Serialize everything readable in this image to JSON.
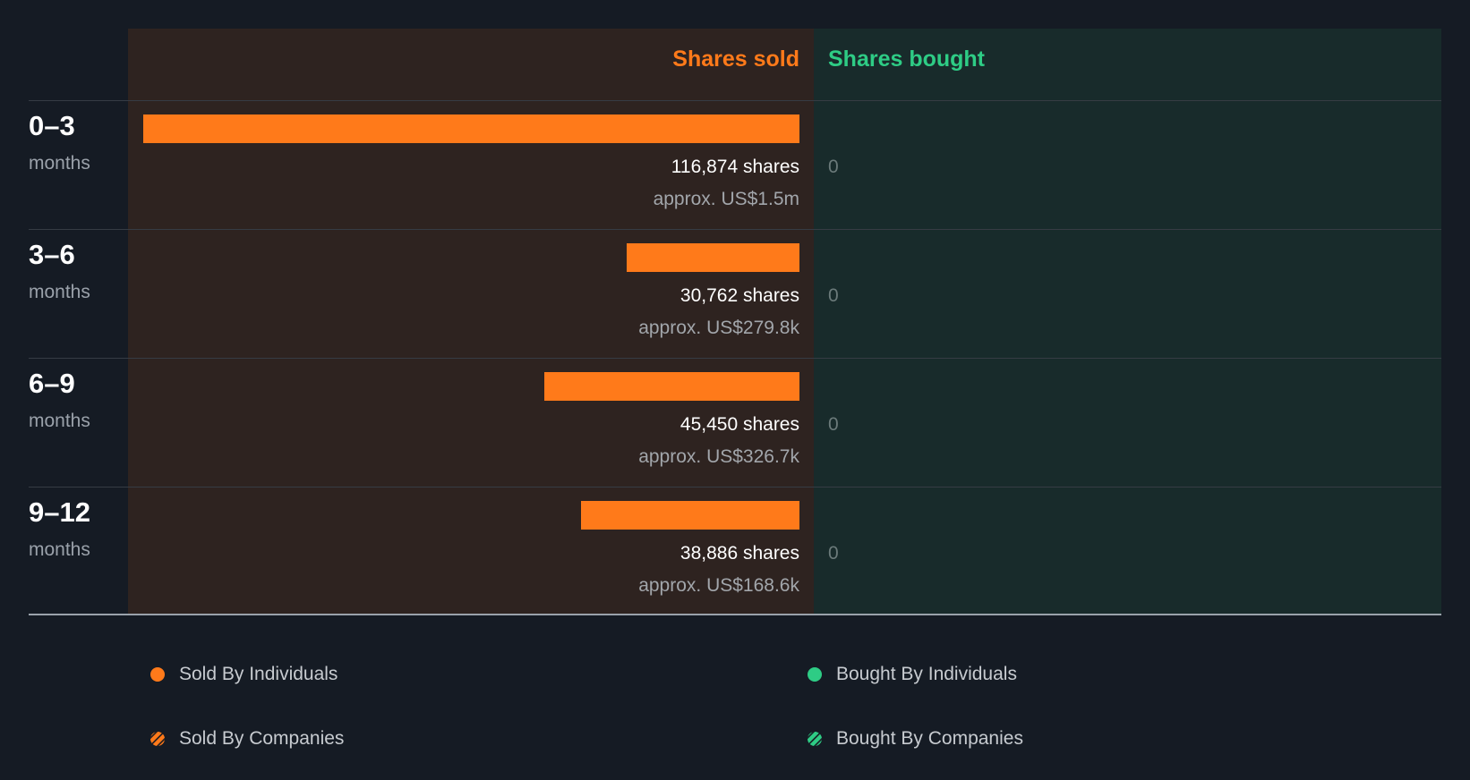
{
  "chart_data": {
    "type": "bar",
    "title": "",
    "column_headers": {
      "sold": "Shares sold",
      "bought": "Shares bought"
    },
    "categories": [
      "0–3",
      "3–6",
      "6–9",
      "9–12"
    ],
    "category_unit": "months",
    "series": [
      {
        "name": "Shares sold",
        "values": [
          116874,
          30762,
          45450,
          38886
        ]
      },
      {
        "name": "Shares bought",
        "values": [
          0,
          0,
          0,
          0
        ]
      }
    ],
    "rows": [
      {
        "period": "0–3",
        "unit": "months",
        "sold_shares": 116874,
        "sold_label": "116,874 shares",
        "sold_value": "approx. US$1.5m",
        "bought_label": "0"
      },
      {
        "period": "3–6",
        "unit": "months",
        "sold_shares": 30762,
        "sold_label": "30,762 shares",
        "sold_value": "approx. US$279.8k",
        "bought_label": "0"
      },
      {
        "period": "6–9",
        "unit": "months",
        "sold_shares": 45450,
        "sold_label": "45,450 shares",
        "sold_value": "approx. US$326.7k",
        "bought_label": "0"
      },
      {
        "period": "9–12",
        "unit": "months",
        "sold_shares": 38886,
        "sold_label": "38,886 shares",
        "sold_value": "approx. US$168.6k",
        "bought_label": "0"
      }
    ],
    "legend": [
      {
        "label": "Sold By Individuals"
      },
      {
        "label": "Bought By Individuals"
      },
      {
        "label": "Sold By Companies"
      },
      {
        "label": "Bought By Companies"
      }
    ],
    "colors": {
      "sold": "#ff7a1a",
      "bought": "#2ecc85"
    }
  }
}
